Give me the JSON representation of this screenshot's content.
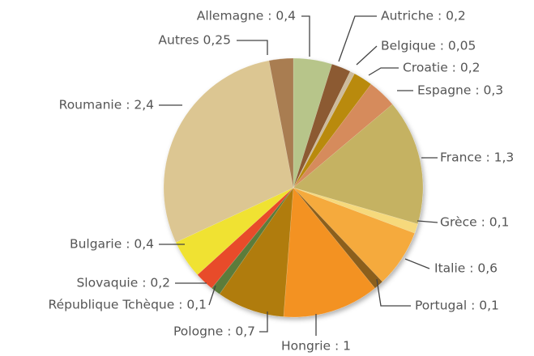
{
  "chart_data": {
    "type": "pie",
    "categories": [
      "Allemagne : 0,4",
      "Autriche : 0,2",
      "Belgique : 0,05",
      "Croatie : 0,2",
      "Espagne : 0,3",
      "France : 1,3",
      "Grèce : 0,1",
      "Italie : 0,6",
      "Portugal : 0,1",
      "Hongrie : 1",
      "Pologne : 0,7",
      "République Tchèque : 0,1",
      "Slovaquie : 0,2",
      "Bulgarie : 0,4",
      "Roumanie : 2,4",
      "Autres 0,25"
    ],
    "values": [
      0.4,
      0.2,
      0.05,
      0.2,
      0.3,
      1.3,
      0.1,
      0.6,
      0.1,
      1,
      0.7,
      0.1,
      0.2,
      0.4,
      2.4,
      0.25
    ],
    "colors": [
      "#b7c58a",
      "#8c5a30",
      "#cdbb9c",
      "#b98a0c",
      "#d68b5b",
      "#c5b262",
      "#f6d97c",
      "#f5aa3c",
      "#8b5e1a",
      "#f39220",
      "#b07b0b",
      "#5c7b3b",
      "#e84c2b",
      "#f0e232",
      "#dcc692",
      "#a97d51"
    ]
  }
}
